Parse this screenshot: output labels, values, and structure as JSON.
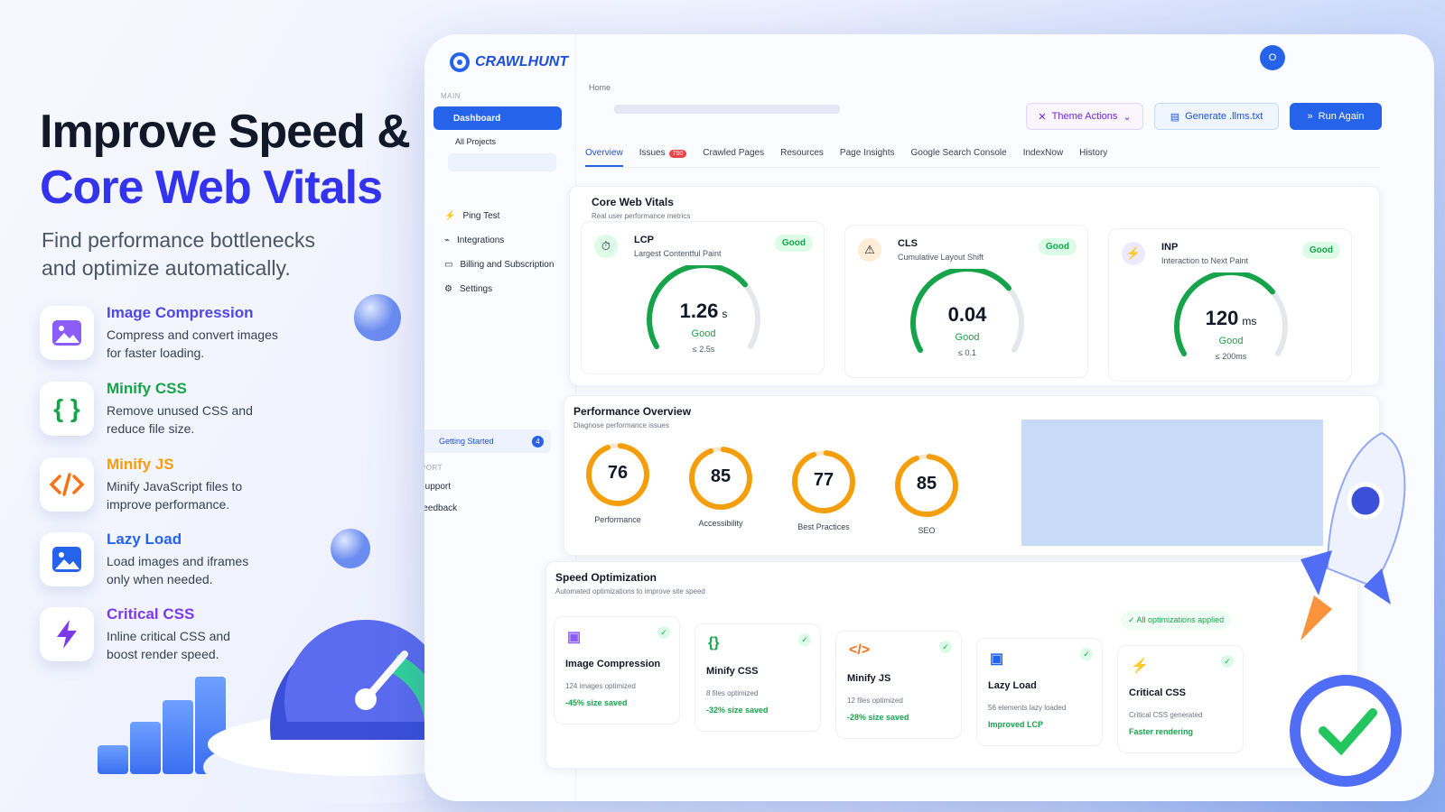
{
  "hero": {
    "title_line1": "Improve Speed &",
    "title_line2": "Core Web Vitals",
    "subtitle_line1": "Find performance bottlenecks",
    "subtitle_line2": "and optimize automatically."
  },
  "features": [
    {
      "title": "Image Compression",
      "desc_line1": "Compress and convert images",
      "desc_line2": "for faster loading."
    },
    {
      "title": "Minify CSS",
      "desc_line1": "Remove unused CSS and",
      "desc_line2": "reduce file size."
    },
    {
      "title": "Minify JS",
      "desc_line1": "Minify JavaScript files to",
      "desc_line2": "improve performance."
    },
    {
      "title": "Lazy Load",
      "desc_line1": "Load images and iframes",
      "desc_line2": "only when needed."
    },
    {
      "title": "Critical CSS",
      "desc_line1": "Inline critical CSS and",
      "desc_line2": "boost render speed."
    }
  ],
  "app": {
    "brand": "CRAWLHUNT",
    "avatar": "O",
    "sidebar": {
      "main_label": "MAIN",
      "dashboard": "Dashboard",
      "all_projects": "All Projects",
      "items": [
        "Ping Test",
        "Integrations",
        "Billing and Subscription",
        "Settings"
      ],
      "getting_started": "Getting Started",
      "getting_started_count": 4,
      "support_label": "SUPPORT",
      "support_items": [
        "Support",
        "Feedback"
      ]
    },
    "breadcrumb": "Home",
    "buttons": {
      "theme": "Theme Actions",
      "generate": "Generate .llms.txt",
      "run": "Run Again"
    },
    "tabs": [
      "Overview",
      "Issues",
      "Crawled Pages",
      "Resources",
      "Page Insights",
      "Google Search Console",
      "IndexNow",
      "History"
    ],
    "issues_count": 750,
    "cwv": {
      "title": "Core Web Vitals",
      "subtitle": "Real user performance metrics",
      "metrics": [
        {
          "abbr": "LCP",
          "name": "Largest Contentful Paint",
          "badge": "Good",
          "value": 1.26,
          "unit": "s",
          "status": "Good",
          "threshold": "≤ 2.5s"
        },
        {
          "abbr": "CLS",
          "name": "Cumulative Layout Shift",
          "badge": "Good",
          "value": 0.04,
          "unit": null,
          "status": "Good",
          "threshold": "≤ 0.1"
        },
        {
          "abbr": "INP",
          "name": "Interaction to Next Paint",
          "badge": "Good",
          "value": 120,
          "unit": "ms",
          "status": "Good",
          "threshold": "≤ 200ms"
        }
      ]
    },
    "performance": {
      "title": "Performance Overview",
      "subtitle": "Diagnose performance issues",
      "scores": [
        {
          "value": 76,
          "label": "Performance"
        },
        {
          "value": 85,
          "label": "Accessibility"
        },
        {
          "value": 77,
          "label": "Best Practices"
        },
        {
          "value": 85,
          "label": "SEO"
        }
      ]
    },
    "speed": {
      "title": "Speed Optimization",
      "subtitle": "Automated optimizations to improve site speed",
      "status": "All optimizations applied",
      "items": [
        {
          "title": "Image Compression",
          "detail": "124 images optimized",
          "result": "-45% size saved"
        },
        {
          "title": "Minify CSS",
          "detail": "8 files optimized",
          "result": "-32% size saved"
        },
        {
          "title": "Minify JS",
          "detail": "12 files optimized",
          "result": "-28% size saved"
        },
        {
          "title": "Lazy Load",
          "detail": "56 elements lazy loaded",
          "result": "Improved LCP"
        },
        {
          "title": "Critical CSS",
          "detail": "Critical CSS generated",
          "result": "Faster rendering"
        }
      ]
    }
  }
}
